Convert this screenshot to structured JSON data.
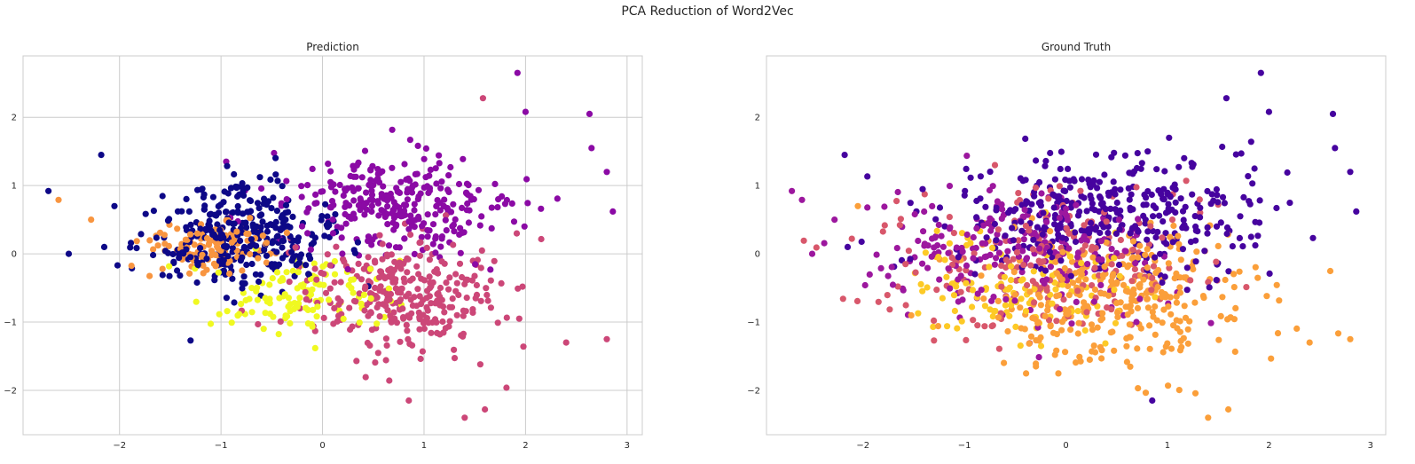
{
  "figure": {
    "suptitle": "PCA Reduction of Word2Vec"
  },
  "chart_data": [
    {
      "type": "scatter",
      "title": "Prediction",
      "xlabel": "",
      "ylabel": "",
      "xlim": [
        -2.95,
        3.15
      ],
      "ylim": [
        -2.65,
        2.9
      ],
      "xticks": [
        -2,
        -1,
        0,
        1,
        2,
        3
      ],
      "yticks": [
        -2,
        -1,
        0,
        1,
        2
      ],
      "xtick_labels": [
        "−2",
        "−1",
        "0",
        "1",
        "2",
        "3"
      ],
      "ytick_labels": [
        "−2",
        "−1",
        "0",
        "1",
        "2"
      ],
      "grid": true,
      "colormap": "plasma",
      "clusters": [
        {
          "color": "#0d0887",
          "center": [
            -0.85,
            0.25
          ],
          "spread": [
            0.45,
            0.38
          ],
          "count": 330
        },
        {
          "color": "#8b0aa5",
          "center": [
            0.75,
            0.7
          ],
          "spread": [
            0.55,
            0.38
          ],
          "count": 300
        },
        {
          "color": "#cc4778",
          "center": [
            0.8,
            -0.6
          ],
          "spread": [
            0.5,
            0.45
          ],
          "count": 300
        },
        {
          "color": "#f89540",
          "center": [
            -1.15,
            0.1
          ],
          "spread": [
            0.35,
            0.22
          ],
          "count": 120
        },
        {
          "color": "#f0f921",
          "center": [
            -0.2,
            -0.6
          ],
          "spread": [
            0.45,
            0.3
          ],
          "count": 120
        }
      ],
      "points": [
        {
          "x": -2.7,
          "y": 0.92,
          "color": "#0d0887"
        },
        {
          "x": -2.5,
          "y": 0.0,
          "color": "#0d0887"
        },
        {
          "x": -2.18,
          "y": 1.45,
          "color": "#0d0887"
        },
        {
          "x": -2.15,
          "y": 0.1,
          "color": "#0d0887"
        },
        {
          "x": -2.05,
          "y": 0.7,
          "color": "#0d0887"
        },
        {
          "x": -1.3,
          "y": -1.27,
          "color": "#0d0887"
        },
        {
          "x": -2.6,
          "y": 0.79,
          "color": "#f89540"
        },
        {
          "x": -2.28,
          "y": 0.5,
          "color": "#f89540"
        },
        {
          "x": 1.92,
          "y": 2.65,
          "color": "#8b0aa5"
        },
        {
          "x": 2.0,
          "y": 2.08,
          "color": "#8b0aa5"
        },
        {
          "x": 2.63,
          "y": 2.05,
          "color": "#8b0aa5"
        },
        {
          "x": 2.86,
          "y": 0.62,
          "color": "#8b0aa5"
        },
        {
          "x": 2.8,
          "y": 1.2,
          "color": "#8b0aa5"
        },
        {
          "x": 2.65,
          "y": 1.55,
          "color": "#8b0aa5"
        },
        {
          "x": 1.58,
          "y": 2.28,
          "color": "#cc4778"
        },
        {
          "x": 2.8,
          "y": -1.25,
          "color": "#cc4778"
        },
        {
          "x": 2.4,
          "y": -1.3,
          "color": "#cc4778"
        },
        {
          "x": 1.4,
          "y": -2.4,
          "color": "#cc4778"
        },
        {
          "x": 1.6,
          "y": -2.28,
          "color": "#cc4778"
        },
        {
          "x": 0.85,
          "y": -2.15,
          "color": "#cc4778"
        }
      ]
    },
    {
      "type": "scatter",
      "title": "Ground Truth",
      "xlabel": "",
      "ylabel": "",
      "xlim": [
        -2.95,
        3.15
      ],
      "ylim": [
        -2.65,
        2.9
      ],
      "xticks": [
        -2,
        -1,
        0,
        1,
        2,
        3
      ],
      "yticks": [
        -2,
        -1,
        0,
        1,
        2
      ],
      "xtick_labels": [
        "−2",
        "−1",
        "0",
        "1",
        "2",
        "3"
      ],
      "ytick_labels": [
        "−2",
        "−1",
        "0",
        "1",
        "2"
      ],
      "grid": false,
      "colormap": "plasma",
      "clusters": [
        {
          "color": "#46039f",
          "center": [
            0.4,
            0.55
          ],
          "spread": [
            0.85,
            0.45
          ],
          "count": 380
        },
        {
          "color": "#9c179e",
          "center": [
            -0.5,
            0.0
          ],
          "spread": [
            0.7,
            0.5
          ],
          "count": 220
        },
        {
          "color": "#d8576b",
          "center": [
            -0.2,
            -0.1
          ],
          "spread": [
            0.8,
            0.55
          ],
          "count": 200
        },
        {
          "color": "#fb9f3a",
          "center": [
            0.5,
            -0.65
          ],
          "spread": [
            0.65,
            0.5
          ],
          "count": 320
        },
        {
          "color": "#fdca26",
          "center": [
            -0.5,
            -0.5
          ],
          "spread": [
            0.55,
            0.4
          ],
          "count": 120
        }
      ],
      "points": [
        {
          "x": -2.7,
          "y": 0.92,
          "color": "#9c179e"
        },
        {
          "x": -2.5,
          "y": 0.0,
          "color": "#9c179e"
        },
        {
          "x": -2.18,
          "y": 1.45,
          "color": "#46039f"
        },
        {
          "x": -2.15,
          "y": 0.1,
          "color": "#46039f"
        },
        {
          "x": -2.05,
          "y": 0.7,
          "color": "#fb9f3a"
        },
        {
          "x": -1.3,
          "y": -1.27,
          "color": "#d8576b"
        },
        {
          "x": -2.6,
          "y": 0.79,
          "color": "#9c179e"
        },
        {
          "x": -2.28,
          "y": 0.5,
          "color": "#9c179e"
        },
        {
          "x": 1.92,
          "y": 2.65,
          "color": "#46039f"
        },
        {
          "x": 2.0,
          "y": 2.08,
          "color": "#46039f"
        },
        {
          "x": 2.63,
          "y": 2.05,
          "color": "#46039f"
        },
        {
          "x": 2.86,
          "y": 0.62,
          "color": "#46039f"
        },
        {
          "x": 2.8,
          "y": 1.2,
          "color": "#46039f"
        },
        {
          "x": 2.65,
          "y": 1.55,
          "color": "#46039f"
        },
        {
          "x": 1.58,
          "y": 2.28,
          "color": "#46039f"
        },
        {
          "x": 2.8,
          "y": -1.25,
          "color": "#fb9f3a"
        },
        {
          "x": 2.4,
          "y": -1.3,
          "color": "#fb9f3a"
        },
        {
          "x": 1.4,
          "y": -2.4,
          "color": "#fb9f3a"
        },
        {
          "x": 1.6,
          "y": -2.28,
          "color": "#fb9f3a"
        },
        {
          "x": 0.85,
          "y": -2.15,
          "color": "#46039f"
        }
      ]
    }
  ]
}
